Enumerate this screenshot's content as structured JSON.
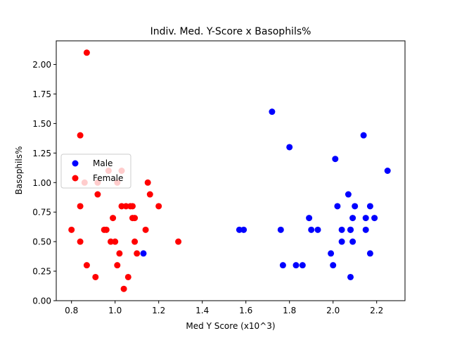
{
  "chart_data": {
    "type": "scatter",
    "title": "Indiv. Med. Y-Score x Basophils%",
    "xlabel": "Med Y Score (x10^3)",
    "ylabel": "Basophils%",
    "xlim": [
      0.73,
      2.33
    ],
    "ylim": [
      0.0,
      2.2
    ],
    "xticks": [
      0.8,
      1.0,
      1.2,
      1.4,
      1.6,
      1.8,
      2.0,
      2.2
    ],
    "xtick_labels": [
      "0.8",
      "1.0",
      "1.2",
      "1.4",
      "1.6",
      "1.8",
      "2.0",
      "2.2"
    ],
    "yticks": [
      0.0,
      0.25,
      0.5,
      0.75,
      1.0,
      1.25,
      1.5,
      1.75,
      2.0
    ],
    "ytick_labels": [
      "0.00",
      "0.25",
      "0.50",
      "0.75",
      "1.00",
      "1.25",
      "1.50",
      "1.75",
      "2.00"
    ],
    "grid": false,
    "legend_position": "center-left",
    "series": [
      {
        "name": "Male",
        "color": "#0000ff",
        "points": [
          [
            1.13,
            0.4
          ],
          [
            1.57,
            0.6
          ],
          [
            1.59,
            0.6
          ],
          [
            1.72,
            1.6
          ],
          [
            1.76,
            0.6
          ],
          [
            1.77,
            0.3
          ],
          [
            1.8,
            1.3
          ],
          [
            1.83,
            0.3
          ],
          [
            1.86,
            0.3
          ],
          [
            1.89,
            0.7
          ],
          [
            1.9,
            0.6
          ],
          [
            1.93,
            0.6
          ],
          [
            1.99,
            0.4
          ],
          [
            2.0,
            0.3
          ],
          [
            2.01,
            1.2
          ],
          [
            2.02,
            0.8
          ],
          [
            2.04,
            0.5
          ],
          [
            2.04,
            0.6
          ],
          [
            2.07,
            0.9
          ],
          [
            2.08,
            0.6
          ],
          [
            2.08,
            0.6
          ],
          [
            2.08,
            0.2
          ],
          [
            2.09,
            0.7
          ],
          [
            2.09,
            0.5
          ],
          [
            2.1,
            0.8
          ],
          [
            2.14,
            1.4
          ],
          [
            2.15,
            0.6
          ],
          [
            2.15,
            0.7
          ],
          [
            2.17,
            0.8
          ],
          [
            2.17,
            0.4
          ],
          [
            2.19,
            0.7
          ],
          [
            2.25,
            1.1
          ]
        ]
      },
      {
        "name": "Female",
        "color": "#ff0000",
        "points": [
          [
            0.8,
            0.6
          ],
          [
            0.84,
            0.8
          ],
          [
            0.84,
            1.4
          ],
          [
            0.84,
            0.5
          ],
          [
            0.86,
            1.0
          ],
          [
            0.87,
            0.3
          ],
          [
            0.87,
            2.1
          ],
          [
            0.91,
            0.2
          ],
          [
            0.92,
            0.9
          ],
          [
            0.92,
            1.0
          ],
          [
            0.95,
            0.6
          ],
          [
            0.96,
            0.6
          ],
          [
            0.97,
            1.1
          ],
          [
            0.98,
            0.5
          ],
          [
            0.99,
            0.7
          ],
          [
            1.0,
            0.5
          ],
          [
            1.01,
            0.3
          ],
          [
            1.01,
            1.0
          ],
          [
            1.02,
            0.4
          ],
          [
            1.03,
            1.1
          ],
          [
            1.03,
            0.8
          ],
          [
            1.04,
            0.1
          ],
          [
            1.05,
            0.8
          ],
          [
            1.06,
            0.2
          ],
          [
            1.07,
            0.8
          ],
          [
            1.08,
            0.8
          ],
          [
            1.08,
            0.7
          ],
          [
            1.09,
            0.5
          ],
          [
            1.09,
            0.7
          ],
          [
            1.1,
            0.4
          ],
          [
            1.14,
            0.6
          ],
          [
            1.15,
            1.0
          ],
          [
            1.16,
            0.9
          ],
          [
            1.2,
            0.8
          ],
          [
            1.29,
            0.5
          ]
        ]
      }
    ]
  }
}
